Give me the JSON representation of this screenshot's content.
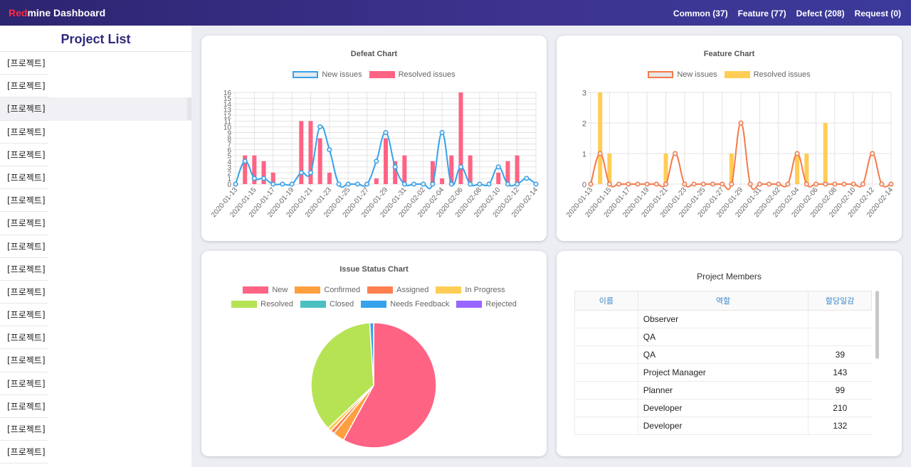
{
  "app": {
    "brand_red": "Red",
    "brand_rest": "mine Dashboard"
  },
  "topnav": [
    "Common (37)",
    "Feature (77)",
    "Defect (208)",
    "Request (0)"
  ],
  "sidebar": {
    "title": "Project List",
    "items": [
      "[프로젝트]",
      "[프로젝트]",
      "[프로젝트]",
      "[프로젝트]",
      "[프로젝트]",
      "[프로젝트]",
      "[프로젝트]",
      "[프로젝트]",
      "[프로젝트]",
      "[프로젝트]",
      "[프로젝트]",
      "[프로젝트]",
      "[프로젝트]",
      "[프로젝트]",
      "[프로젝트]",
      "[프로젝트]",
      "[프로젝트]",
      "[프로젝트]"
    ]
  },
  "colors": {
    "defect_line": "#36a2eb",
    "defect_bar": "#ff6384",
    "feature_line": "#f47a4a",
    "feature_bar": "#ffcd56"
  },
  "chart_data": [
    {
      "id": "defect",
      "type": "bar",
      "title": "Defeat Chart",
      "legend": [
        "New issues",
        "Resolved issues"
      ],
      "ylim": [
        0,
        16
      ],
      "yticks": [
        0,
        1,
        2,
        3,
        4,
        5,
        6,
        7,
        8,
        9,
        10,
        11,
        12,
        13,
        14,
        15,
        16
      ],
      "categories": [
        "2020-01-13",
        "2020-01-14",
        "2020-01-15",
        "2020-01-16",
        "2020-01-17",
        "2020-01-18",
        "2020-01-19",
        "2020-01-20",
        "2020-01-21",
        "2020-01-22",
        "2020-01-23",
        "2020-01-24",
        "2020-01-25",
        "2020-01-26",
        "2020-01-27",
        "2020-01-28",
        "2020-01-29",
        "2020-01-30",
        "2020-01-31",
        "2020-02-01",
        "2020-02-02",
        "2020-02-03",
        "2020-02-04",
        "2020-02-05",
        "2020-02-06",
        "2020-02-07",
        "2020-02-08",
        "2020-02-09",
        "2020-02-10",
        "2020-02-11",
        "2020-02-12",
        "2020-02-13",
        "2020-02-14"
      ],
      "tick_labels": [
        "2020-01-13",
        "2020-01-15",
        "2020-01-17",
        "2020-01-19",
        "2020-01-21",
        "2020-01-23",
        "2020-01-25",
        "2020-01-27",
        "2020-01-29",
        "2020-01-31",
        "2020-02-02",
        "2020-02-04",
        "2020-02-06",
        "2020-02-08",
        "2020-02-10",
        "2020-02-12",
        "2020-02-14"
      ],
      "series": [
        {
          "name": "New issues",
          "kind": "line",
          "values": [
            0,
            4,
            1,
            1,
            0,
            0,
            0,
            2,
            2,
            10,
            6,
            0,
            0,
            0,
            0,
            4,
            9,
            3,
            0,
            0,
            0,
            0,
            9,
            0,
            3,
            0,
            0,
            0,
            3,
            0,
            0,
            1,
            0
          ]
        },
        {
          "name": "Resolved issues",
          "kind": "bar",
          "values": [
            0,
            5,
            5,
            4,
            2,
            0,
            0,
            11,
            11,
            8,
            2,
            0,
            0,
            0,
            0,
            1,
            8,
            4,
            5,
            0,
            0,
            4,
            1,
            5,
            16,
            5,
            0,
            0,
            2,
            4,
            5,
            0,
            0
          ]
        }
      ]
    },
    {
      "id": "feature",
      "type": "bar",
      "title": "Feature Chart",
      "legend": [
        "New issues",
        "Resolved issues"
      ],
      "ylim": [
        0,
        3
      ],
      "yticks": [
        0,
        1,
        2,
        3
      ],
      "categories": [
        "2020-01-13",
        "2020-01-14",
        "2020-01-15",
        "2020-01-16",
        "2020-01-17",
        "2020-01-18",
        "2020-01-19",
        "2020-01-20",
        "2020-01-21",
        "2020-01-22",
        "2020-01-23",
        "2020-01-24",
        "2020-01-25",
        "2020-01-26",
        "2020-01-27",
        "2020-01-28",
        "2020-01-29",
        "2020-01-30",
        "2020-01-31",
        "2020-02-01",
        "2020-02-02",
        "2020-02-03",
        "2020-02-04",
        "2020-02-05",
        "2020-02-06",
        "2020-02-07",
        "2020-02-08",
        "2020-02-09",
        "2020-02-10",
        "2020-02-11",
        "2020-02-12",
        "2020-02-13",
        "2020-02-14"
      ],
      "tick_labels": [
        "2020-01-13",
        "2020-01-15",
        "2020-01-17",
        "2020-01-19",
        "2020-01-21",
        "2020-01-23",
        "2020-01-25",
        "2020-01-27",
        "2020-01-29",
        "2020-01-31",
        "2020-02-02",
        "2020-02-04",
        "2020-02-06",
        "2020-02-08",
        "2020-02-10",
        "2020-02-12",
        "2020-02-14"
      ],
      "series": [
        {
          "name": "New issues",
          "kind": "line",
          "values": [
            0,
            1,
            0,
            0,
            0,
            0,
            0,
            0,
            0,
            1,
            0,
            0,
            0,
            0,
            0,
            0,
            2,
            0,
            0,
            0,
            0,
            0,
            1,
            0,
            0,
            0,
            0,
            0,
            0,
            0,
            1,
            0,
            0
          ]
        },
        {
          "name": "Resolved issues",
          "kind": "bar",
          "values": [
            0,
            3,
            1,
            0,
            0,
            0,
            0,
            0,
            1,
            0,
            0,
            0,
            0,
            0,
            0,
            1,
            0,
            0,
            0,
            0,
            0,
            0,
            1,
            1,
            0,
            2,
            0,
            0,
            0,
            0,
            0,
            0,
            0
          ]
        }
      ]
    },
    {
      "id": "status",
      "type": "pie",
      "title": "Issue Status Chart",
      "labels": [
        "New",
        "Confirmed",
        "Assigned",
        "In Progress",
        "Resolved",
        "Closed",
        "Needs Feedback",
        "Rejected"
      ],
      "colors": [
        "#ff6384",
        "#ff9f40",
        "#ff7f50",
        "#ffcd56",
        "#b5e354",
        "#4bc0c0",
        "#36a2eb",
        "#9966ff"
      ],
      "values": [
        58,
        3,
        1,
        1,
        36,
        0,
        1,
        0
      ]
    }
  ],
  "members": {
    "title": "Project Members",
    "headers": [
      "이름",
      "역할",
      "할당일감"
    ],
    "rows": [
      {
        "name": "",
        "role": "Observer",
        "count": ""
      },
      {
        "name": "",
        "role": "QA",
        "count": ""
      },
      {
        "name": "",
        "role": "QA",
        "count": "39"
      },
      {
        "name": "",
        "role": "Project Manager",
        "count": "143"
      },
      {
        "name": "",
        "role": "Planner",
        "count": "99"
      },
      {
        "name": "",
        "role": "Developer",
        "count": "210"
      },
      {
        "name": "",
        "role": "Developer",
        "count": "132"
      }
    ]
  }
}
